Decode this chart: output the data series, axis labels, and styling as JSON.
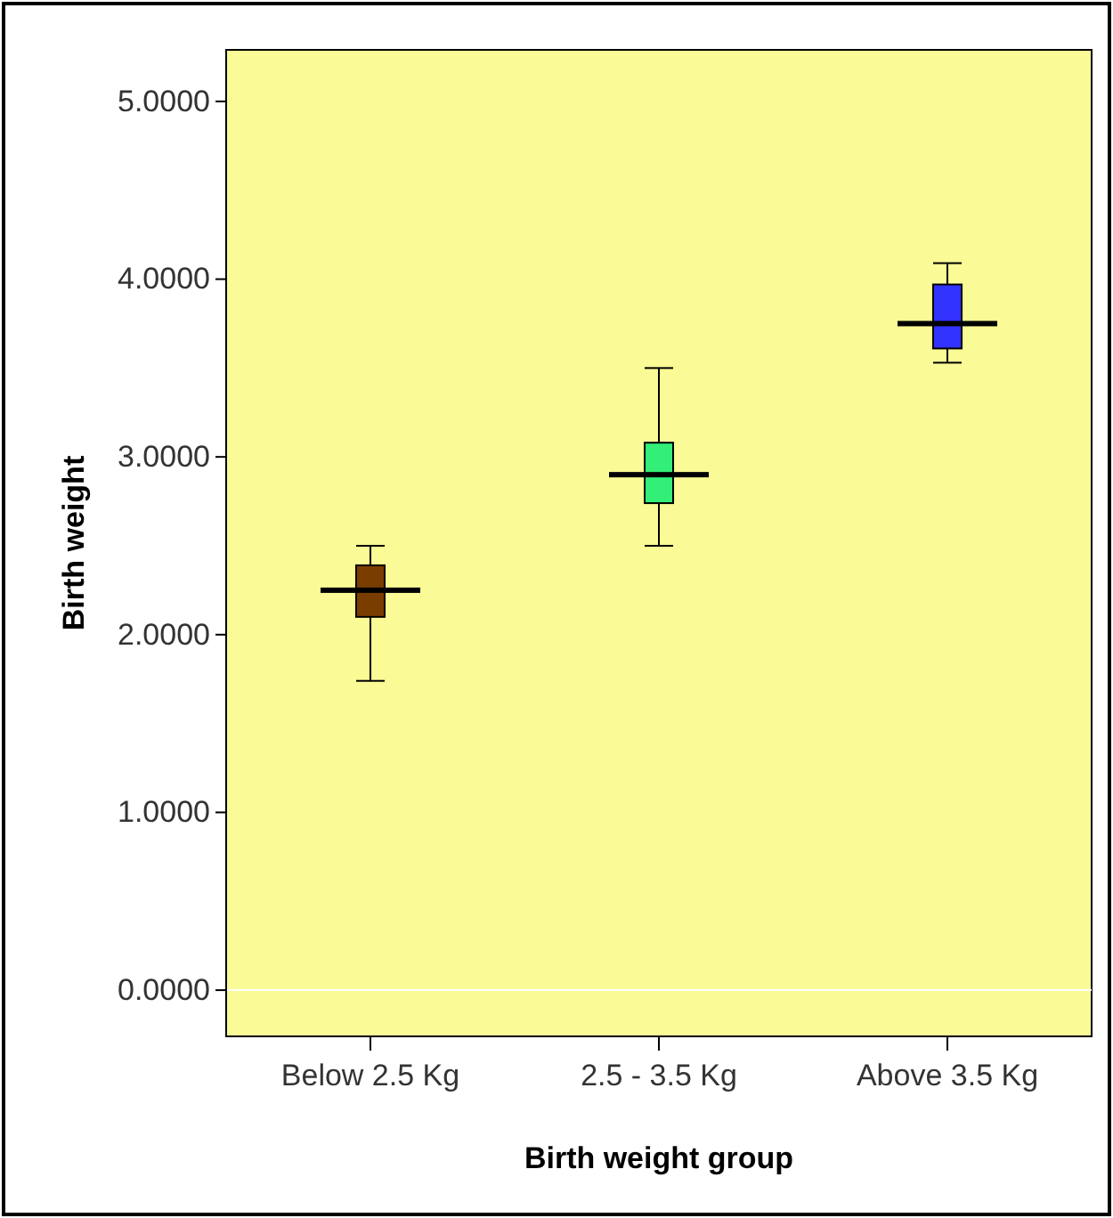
{
  "chart_data": {
    "type": "box",
    "xlabel": "Birth weight group",
    "ylabel": "Birth weight",
    "categories": [
      "Below 2.5 Kg",
      "2.5 - 3.5 Kg",
      "Above 3.5 Kg"
    ],
    "colors": [
      "#7a3d00",
      "#33ee77",
      "#3333ff"
    ],
    "boxes": [
      {
        "low": 1.74,
        "q1": 2.1,
        "median": 2.25,
        "q3": 2.39,
        "high": 2.5
      },
      {
        "low": 2.5,
        "q1": 2.74,
        "median": 2.9,
        "q3": 3.08,
        "high": 3.5
      },
      {
        "low": 3.53,
        "q1": 3.61,
        "median": 3.75,
        "q3": 3.97,
        "high": 4.09
      }
    ],
    "ylim": [
      -0.26,
      5.29
    ],
    "yticks": [
      {
        "value": 0,
        "label": "0.0000"
      },
      {
        "value": 1,
        "label": "1.0000"
      },
      {
        "value": 2,
        "label": "2.0000"
      },
      {
        "value": 3,
        "label": "3.0000"
      },
      {
        "value": 4,
        "label": "4.0000"
      },
      {
        "value": 5,
        "label": "5.0000"
      }
    ],
    "ref_lines": [
      {
        "axis": "y",
        "value": 0,
        "color": "#ffffff"
      }
    ]
  }
}
